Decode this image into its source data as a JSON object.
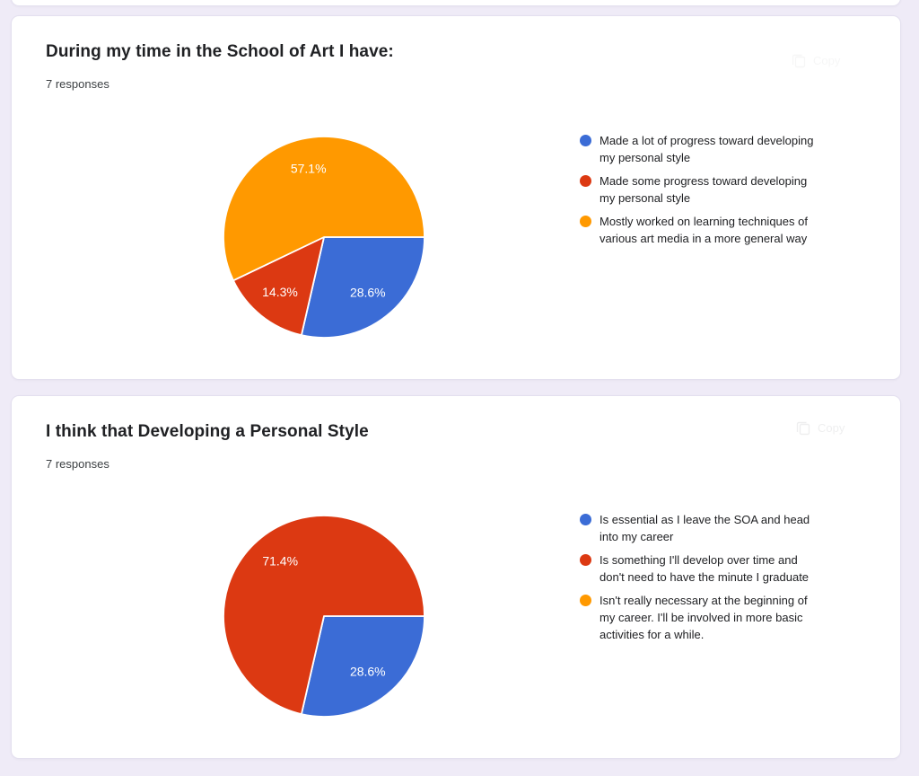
{
  "page": {
    "background": "#efebf7",
    "card_background": "#ffffff"
  },
  "palette": {
    "blue": "#3b6cd6",
    "red": "#dc3912",
    "orange": "#ff9900",
    "label_text": "#ffffff"
  },
  "cards": [
    {
      "question": "During my time in the School of Art I have:",
      "responses": "7 responses",
      "copy_label": "Copy",
      "chart_data": {
        "type": "pie",
        "title": "During my time in the School of Art I have:",
        "start_angle_deg": 0,
        "direction": "clockwise",
        "legend_position": "right",
        "slices": [
          {
            "label": "Made a lot of progress toward developing my personal style",
            "pct": 28.6,
            "pct_label": "28.6%",
            "color": "#3b6cd6"
          },
          {
            "label": "Made some progress toward developing my personal style",
            "pct": 14.3,
            "pct_label": "14.3%",
            "color": "#dc3912"
          },
          {
            "label": "Mostly worked on learning techniques of various art media in a more general way",
            "pct": 57.1,
            "pct_label": "57.1%",
            "color": "#ff9900"
          }
        ]
      }
    },
    {
      "question": "I think that Developing a Personal Style",
      "responses": "7 responses",
      "copy_label": "Copy",
      "chart_data": {
        "type": "pie",
        "title": "I think that Developing a Personal Style",
        "start_angle_deg": 0,
        "direction": "clockwise",
        "legend_position": "right",
        "slices": [
          {
            "label": "Is essential as I leave the SOA and head into my career",
            "pct": 28.6,
            "pct_label": "28.6%",
            "color": "#3b6cd6"
          },
          {
            "label": "Is something I'll develop over time and don't need to have the minute I graduate",
            "pct": 71.4,
            "pct_label": "71.4%",
            "color": "#dc3912"
          },
          {
            "label": "Isn't really necessary at the beginning of my career. I'll be involved in more basic activities for a while.",
            "pct": 0,
            "pct_label": "",
            "color": "#ff9900"
          }
        ]
      }
    }
  ]
}
